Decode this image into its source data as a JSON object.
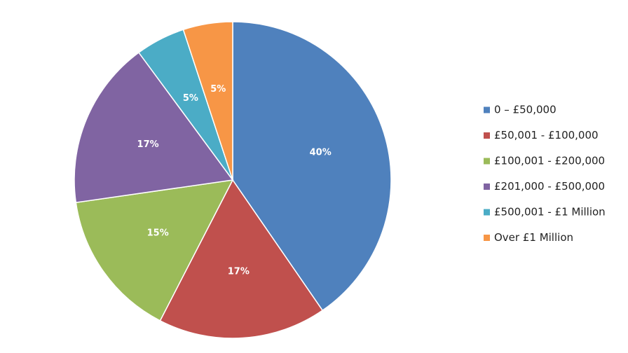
{
  "chart_data": {
    "type": "pie",
    "categories": [
      "0 – £50,000",
      "£50,001 - £100,000",
      "£100,001 - £200,000",
      "£201,000 - £500,000",
      "£500,001 - £1 Million",
      "Over £1 Million"
    ],
    "values": [
      40,
      17,
      15,
      17,
      5,
      5
    ],
    "labels": [
      "40%",
      "17%",
      "15%",
      "17%",
      "5%",
      "5%"
    ],
    "colors": [
      "#4F81BD",
      "#C0504D",
      "#9BBB59",
      "#8064A2",
      "#4BACC6",
      "#F79646"
    ],
    "start": "12 o'clock",
    "direction": "clockwise",
    "legend": "right"
  }
}
